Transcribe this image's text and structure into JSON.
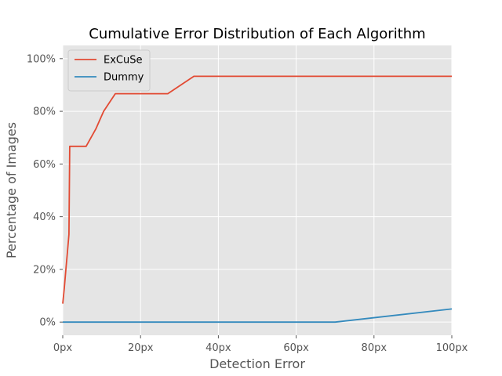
{
  "chart_data": {
    "type": "line",
    "title": "Cumulative Error Distribution of Each Algorithm",
    "xlabel": "Detection Error",
    "ylabel": "Percentage of Images",
    "xlim": [
      0,
      100
    ],
    "ylim": [
      -5,
      105
    ],
    "x_ticks": [
      {
        "value": 0,
        "label": "0px"
      },
      {
        "value": 20,
        "label": "20px"
      },
      {
        "value": 40,
        "label": "40px"
      },
      {
        "value": 60,
        "label": "60px"
      },
      {
        "value": 80,
        "label": "80px"
      },
      {
        "value": 100,
        "label": "100px"
      }
    ],
    "y_ticks": [
      {
        "value": 0,
        "label": "0%"
      },
      {
        "value": 20,
        "label": "20%"
      },
      {
        "value": 40,
        "label": "40%"
      },
      {
        "value": 60,
        "label": "60%"
      },
      {
        "value": 80,
        "label": "80%"
      },
      {
        "value": 100,
        "label": "100%"
      }
    ],
    "grid": true,
    "legend_position": "top-left",
    "background_color": "#e5e5e5",
    "grid_color": "#ffffff",
    "series": [
      {
        "name": "ExCuSe",
        "color": "#e24a33",
        "points": [
          [
            0,
            7
          ],
          [
            0.4,
            13
          ],
          [
            0.8,
            20
          ],
          [
            1.2,
            26.7
          ],
          [
            1.6,
            33.3
          ],
          [
            1.8,
            66.7
          ],
          [
            6,
            66.7
          ],
          [
            8.5,
            73.3
          ],
          [
            10.5,
            80
          ],
          [
            13.5,
            86.7
          ],
          [
            27,
            86.7
          ],
          [
            33.7,
            93.3
          ],
          [
            100,
            93.3
          ]
        ]
      },
      {
        "name": "Dummy",
        "color": "#348abd",
        "points": [
          [
            0,
            0
          ],
          [
            70,
            0
          ],
          [
            100,
            5
          ]
        ]
      }
    ]
  }
}
